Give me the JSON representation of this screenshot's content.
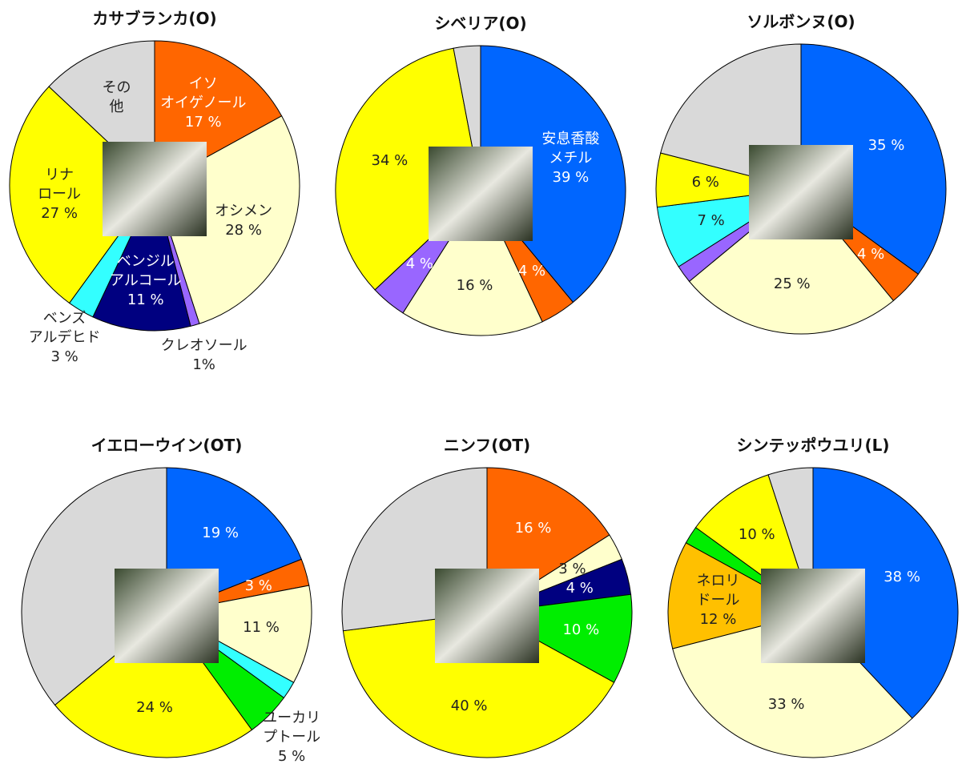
{
  "chart_data": [
    {
      "type": "pie",
      "title": "カサブランカ(O)",
      "categories": [
        "イソ\nオイゲノール",
        "オシメン",
        "クレオソール",
        "ベンジル\nアルコール",
        "ベンズ\nアルデヒド",
        "リナ\nロール",
        "その\n他"
      ],
      "values": [
        17,
        28,
        1,
        11,
        3,
        27,
        13
      ],
      "value_labels": [
        "17 %",
        "28 %",
        "1%",
        "11 %",
        "3 %",
        "27 %",
        null
      ],
      "colors": [
        "#ff6600",
        "#ffffcc",
        "#9966ff",
        "#000080",
        "#33ffff",
        "#ffff00",
        "#d9d9d9"
      ]
    },
    {
      "type": "pie",
      "title": "シベリア(O)",
      "categories": [
        "安息香酸\nメチル",
        null,
        null,
        null,
        null,
        null
      ],
      "values": [
        39,
        4,
        16,
        4,
        34,
        3
      ],
      "value_labels": [
        "39 %",
        "4 %",
        "16 %",
        "4 %",
        "34 %",
        null
      ],
      "colors": [
        "#0066ff",
        "#ff6600",
        "#ffffcc",
        "#9966ff",
        "#ffff00",
        "#d9d9d9"
      ]
    },
    {
      "type": "pie",
      "title": "ソルボンヌ(O)",
      "categories": [
        null,
        null,
        null,
        null,
        null,
        null,
        null
      ],
      "values": [
        35,
        4,
        25,
        2,
        7,
        6,
        21
      ],
      "value_labels": [
        "35 %",
        "4 %",
        "25 %",
        null,
        "7 %",
        "6 %",
        null
      ],
      "colors": [
        "#0066ff",
        "#ff6600",
        "#ffffcc",
        "#9966ff",
        "#33ffff",
        "#ffff00",
        "#d9d9d9"
      ]
    },
    {
      "type": "pie",
      "title": "イエローウイン(OT)",
      "categories": [
        null,
        null,
        null,
        null,
        "ユーカリ\nプトール",
        null,
        null
      ],
      "values": [
        19,
        3,
        11,
        2,
        5,
        24,
        36
      ],
      "value_labels": [
        "19 %",
        "3 %",
        "11 %",
        null,
        "5 %",
        "24 %",
        null
      ],
      "colors": [
        "#0066ff",
        "#ff6600",
        "#ffffcc",
        "#33ffff",
        "#00ee00",
        "#ffff00",
        "#d9d9d9"
      ]
    },
    {
      "type": "pie",
      "title": "ニンフ(OT)",
      "categories": [
        null,
        null,
        null,
        null,
        null,
        null
      ],
      "values": [
        16,
        3,
        4,
        10,
        40,
        27
      ],
      "value_labels": [
        "16 %",
        "3 %",
        "4 %",
        "10 %",
        "40 %",
        null
      ],
      "colors": [
        "#ff6600",
        "#ffffcc",
        "#000080",
        "#00ee00",
        "#ffff00",
        "#d9d9d9"
      ]
    },
    {
      "type": "pie",
      "title": "シンテッポウユリ(L)",
      "categories": [
        null,
        null,
        "ネロリ\nドール",
        null,
        null,
        null
      ],
      "values": [
        38,
        33,
        12,
        2,
        10,
        5
      ],
      "value_labels": [
        "38 %",
        "33 %",
        "12 %",
        null,
        "10 %",
        null
      ],
      "colors": [
        "#0066ff",
        "#ffffcc",
        "#ffc000",
        "#00ee00",
        "#ffff00",
        "#d9d9d9"
      ]
    }
  ]
}
